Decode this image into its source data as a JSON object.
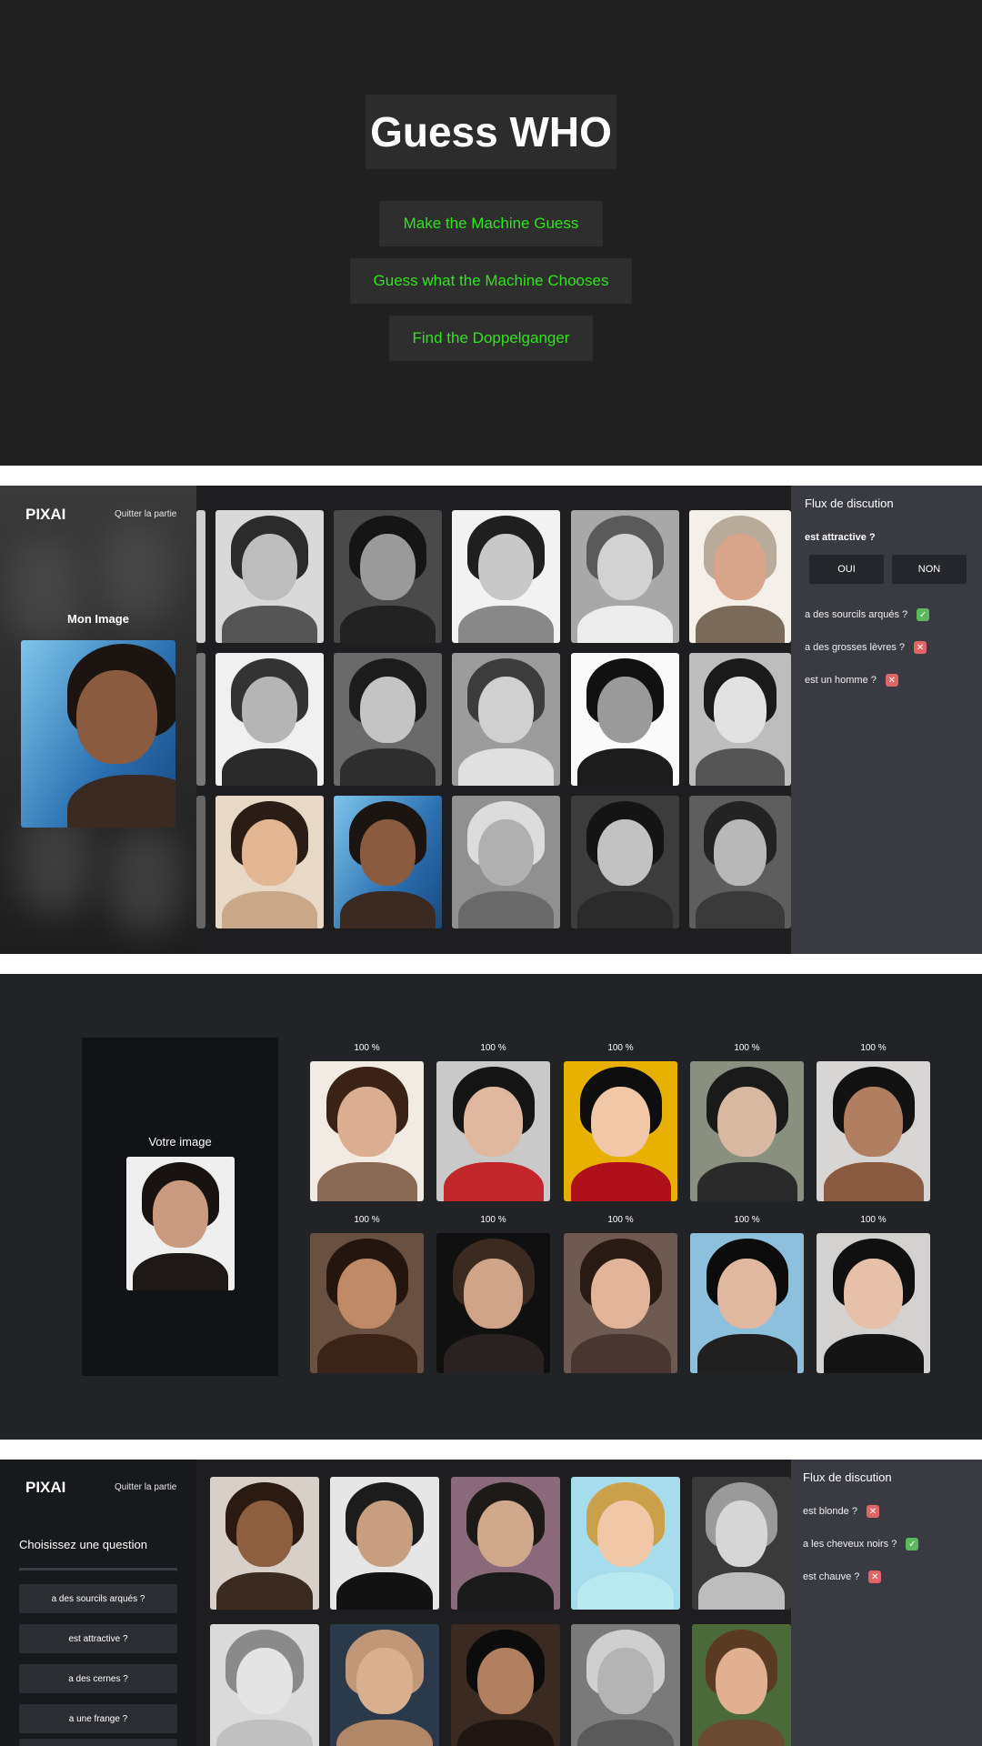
{
  "menu": {
    "title": "Guess WHO",
    "buttons": [
      "Make the Machine Guess",
      "Guess what the Machine Chooses",
      "Find the Doppelganger"
    ],
    "accent_color": "#2ee51c"
  },
  "board": {
    "brand": "PIXAI",
    "quit_label": "Quitter la partie",
    "my_image_label": "Mon Image",
    "discussion": {
      "title": "Flux de discution",
      "current_question": "est attractive ?",
      "yes_label": "OUI",
      "no_label": "NON",
      "history": [
        {
          "question": "a des sourcils arqués ?",
          "answer": "yes"
        },
        {
          "question": "a des grosses lèvres ?",
          "answer": "no"
        },
        {
          "question": "est un homme ?",
          "answer": "no"
        }
      ]
    }
  },
  "doppelganger": {
    "your_image_label": "Votre image",
    "matches": [
      "100 %",
      "100 %",
      "100 %",
      "100 %",
      "100 %",
      "100 %",
      "100 %",
      "100 %",
      "100 %",
      "100 %"
    ]
  },
  "question_board": {
    "brand": "PIXAI",
    "quit_label": "Quitter la partie",
    "choose_label": "Choisissez une question",
    "questions": [
      "a des sourcils arqués ?",
      "est attractive ?",
      "a des cernes ?",
      "a une frange ?"
    ],
    "discussion": {
      "title": "Flux de discution",
      "history": [
        {
          "question": "est blonde ?",
          "answer": "no"
        },
        {
          "question": "a les cheveux noirs ?",
          "answer": "yes"
        },
        {
          "question": "est chauve ?",
          "answer": "no"
        }
      ]
    }
  }
}
